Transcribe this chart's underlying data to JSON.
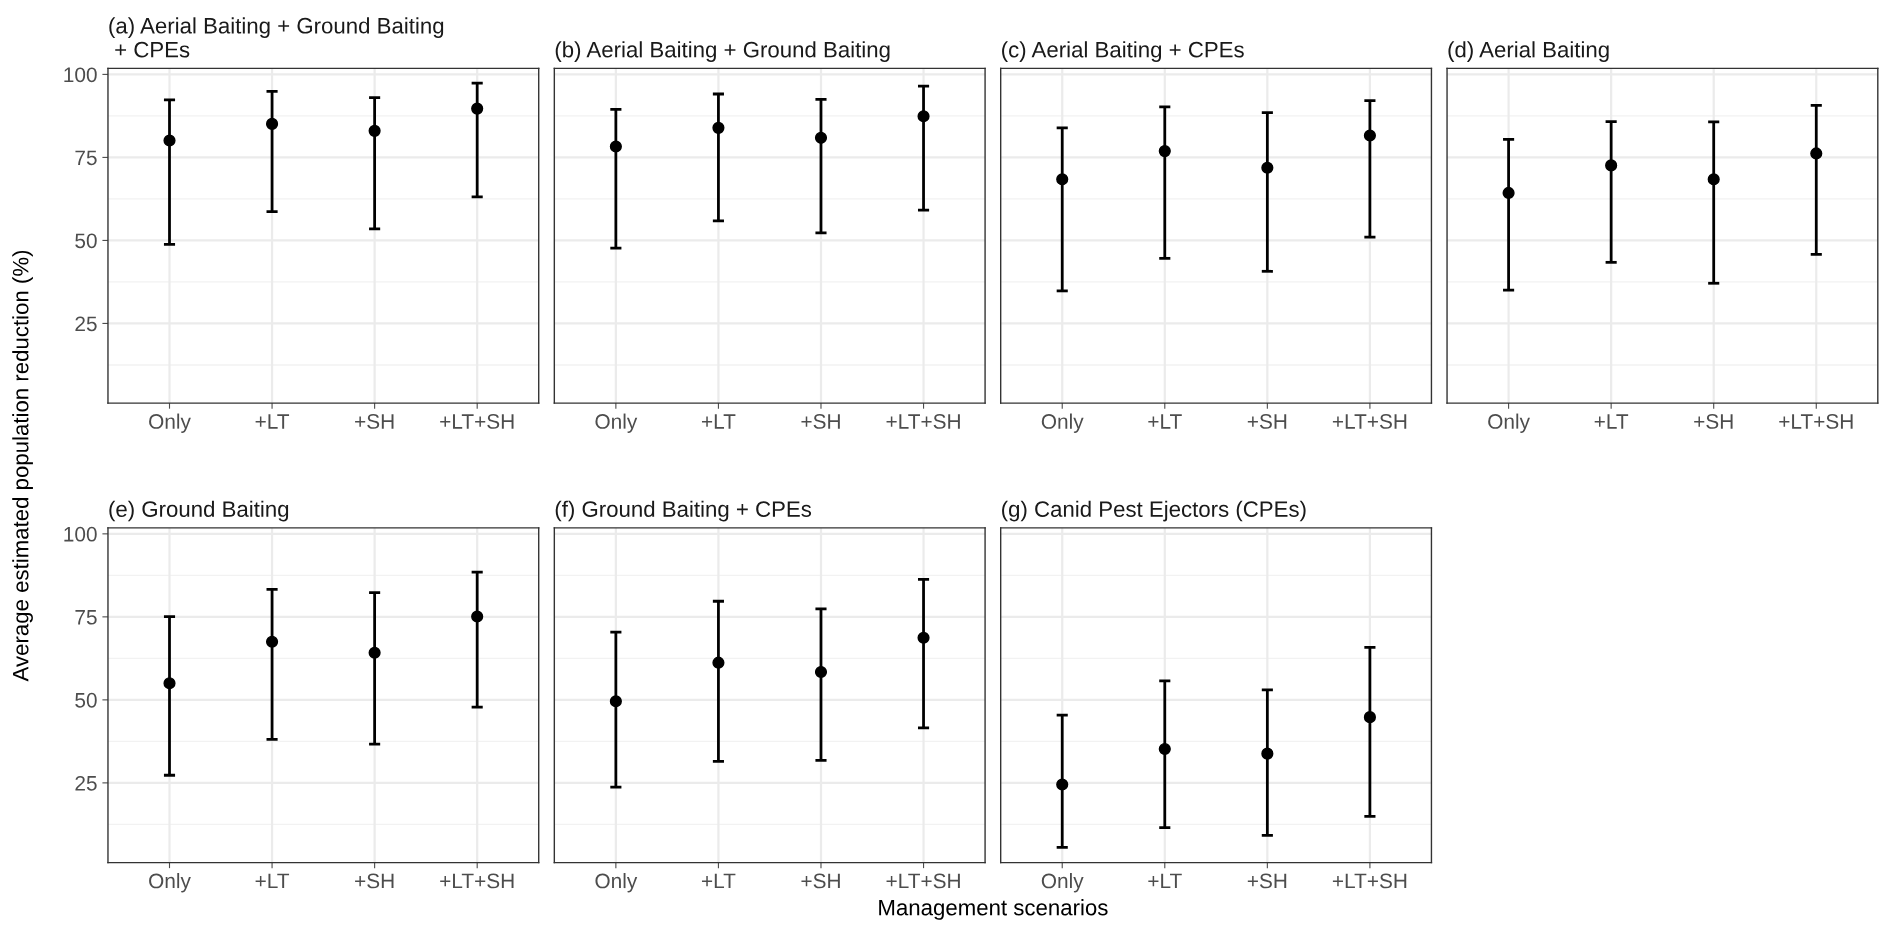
{
  "chart_data": [
    {
      "type": "scatter",
      "title": "(a) Aerial Baiting + Ground Baiting\n + CPEs",
      "ylabel": "Average estimated population reduction (%)",
      "categories": [
        "Only",
        "+LT",
        "+SH",
        "+LT+SH"
      ],
      "values": [
        80.1,
        85.1,
        83.0,
        89.7
      ],
      "errors": [
        [
          48.8,
          92.3
        ],
        [
          58.7,
          94.9
        ],
        [
          53.5,
          93.0
        ],
        [
          63.1,
          97.4
        ]
      ],
      "color": "#000000",
      "marker": "circle",
      "ylim": [
        1,
        101.8
      ],
      "yticks": [
        25,
        50,
        75,
        100
      ],
      "grid": true
    },
    {
      "type": "scatter",
      "title": "(b) Aerial Baiting + Ground Baiting",
      "categories": [
        "Only",
        "+LT",
        "+SH",
        "+LT+SH"
      ],
      "values": [
        78.3,
        83.9,
        80.9,
        87.4
      ],
      "errors": [
        [
          47.7,
          89.5
        ],
        [
          55.9,
          94.1
        ],
        [
          52.3,
          92.5
        ],
        [
          59.1,
          96.5
        ]
      ],
      "color": "#000000",
      "marker": "circle",
      "ylim": [
        1,
        101.8
      ],
      "yticks": [
        25,
        50,
        75,
        100
      ],
      "grid": true,
      "tick_labels": "x"
    },
    {
      "type": "scatter",
      "title": "(c) Aerial Baiting + CPEs",
      "categories": [
        "Only",
        "+LT",
        "+SH",
        "+LT+SH"
      ],
      "values": [
        68.4,
        76.9,
        71.9,
        81.6
      ],
      "errors": [
        [
          34.8,
          83.9
        ],
        [
          44.6,
          90.2
        ],
        [
          40.7,
          88.5
        ],
        [
          51.0,
          92.1
        ]
      ],
      "color": "#000000",
      "marker": "circle",
      "ylim": [
        1,
        101.8
      ],
      "yticks": [
        25,
        50,
        75,
        100
      ],
      "grid": true,
      "tick_labels": "x"
    },
    {
      "type": "scatter",
      "title": "(d) Aerial Baiting",
      "categories": [
        "Only",
        "+LT",
        "+SH",
        "+LT+SH"
      ],
      "values": [
        64.3,
        72.6,
        68.4,
        76.2
      ],
      "errors": [
        [
          35.0,
          80.4
        ],
        [
          43.4,
          85.8
        ],
        [
          37.1,
          85.7
        ],
        [
          45.8,
          90.7
        ]
      ],
      "color": "#000000",
      "marker": "circle",
      "ylim": [
        1,
        101.8
      ],
      "yticks": [
        25,
        50,
        75,
        100
      ],
      "grid": true,
      "tick_labels": "x"
    },
    {
      "type": "scatter",
      "title": "(e) Ground Baiting",
      "categories": [
        "Only",
        "+LT",
        "+SH",
        "+LT+SH"
      ],
      "values": [
        55.0,
        67.5,
        64.2,
        75.1
      ],
      "errors": [
        [
          27.3,
          75.1
        ],
        [
          38.1,
          83.3
        ],
        [
          36.7,
          82.3
        ],
        [
          47.8,
          88.5
        ]
      ],
      "color": "#000000",
      "marker": "circle",
      "ylim": [
        1,
        101.8
      ],
      "yticks": [
        25,
        50,
        75,
        100
      ],
      "grid": true
    },
    {
      "type": "scatter",
      "title": "(f) Ground Baiting + CPEs",
      "xlabel": "Management scenarios",
      "categories": [
        "Only",
        "+LT",
        "+SH",
        "+LT+SH"
      ],
      "values": [
        49.6,
        61.2,
        58.4,
        68.7
      ],
      "errors": [
        [
          23.7,
          70.4
        ],
        [
          31.5,
          79.7
        ],
        [
          31.8,
          77.4
        ],
        [
          41.6,
          86.3
        ]
      ],
      "color": "#000000",
      "marker": "circle",
      "ylim": [
        1,
        101.8
      ],
      "yticks": [
        25,
        50,
        75,
        100
      ],
      "grid": true,
      "tick_labels": "x"
    },
    {
      "type": "scatter",
      "title": "(g) Canid Pest Ejectors (CPEs)",
      "categories": [
        "Only",
        "+LT",
        "+SH",
        "+LT+SH"
      ],
      "values": [
        24.5,
        35.2,
        33.8,
        44.8
      ],
      "errors": [
        [
          5.6,
          45.4
        ],
        [
          11.5,
          55.7
        ],
        [
          9.2,
          53.0
        ],
        [
          14.9,
          65.8
        ]
      ],
      "color": "#000000",
      "marker": "circle",
      "ylim": [
        1,
        101.8
      ],
      "yticks": [
        25,
        50,
        75,
        100
      ],
      "grid": true,
      "tick_labels": "x"
    }
  ]
}
